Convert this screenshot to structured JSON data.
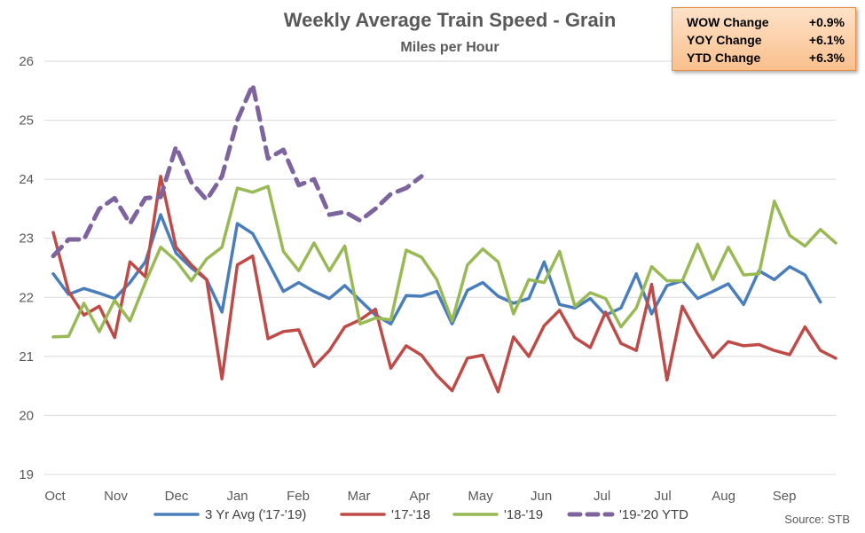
{
  "stats": [
    {
      "label": "WOW Change",
      "value": "+0.9%"
    },
    {
      "label": "YOY Change",
      "value": "+6.1%"
    },
    {
      "label": "YTD Change",
      "value": "+6.3%"
    }
  ],
  "source": "Source:  STB",
  "chart_data": {
    "type": "line",
    "title": "Weekly Average Train Speed - Grain",
    "subtitle": "Miles per Hour",
    "ylim": [
      19,
      26
    ],
    "yticks": [
      19,
      20,
      21,
      22,
      23,
      24,
      25,
      26
    ],
    "month_labels": [
      "Oct",
      "Nov",
      "Dec",
      "Jan",
      "Feb",
      "Mar",
      "Apr",
      "May",
      "Jun",
      "Jul",
      "Jul",
      "Aug",
      "Sep"
    ],
    "grid": "horizontal",
    "legend_position": "bottom",
    "series": [
      {
        "name": "3 Yr Avg ('17-'19)",
        "color": "#4a7ebb",
        "dash": false,
        "values": [
          22.4,
          22.05,
          22.15,
          22.07,
          21.98,
          22.25,
          22.6,
          23.4,
          22.75,
          22.5,
          22.3,
          21.75,
          23.25,
          23.08,
          22.6,
          22.1,
          22.25,
          22.1,
          21.98,
          22.2,
          21.95,
          21.7,
          21.55,
          22.03,
          22.02,
          22.1,
          21.55,
          22.12,
          22.25,
          22.02,
          21.9,
          21.98,
          22.6,
          21.88,
          21.82,
          21.98,
          21.7,
          21.82,
          22.4,
          21.72,
          22.2,
          22.28,
          21.98,
          22.1,
          22.23,
          21.88,
          22.45,
          22.3,
          22.52,
          22.38,
          21.92
        ]
      },
      {
        "name": "'17-'18",
        "color": "#be4b48",
        "dash": false,
        "values": [
          23.1,
          22.1,
          21.7,
          21.85,
          21.32,
          22.6,
          22.35,
          24.05,
          22.85,
          22.55,
          22.3,
          20.62,
          22.55,
          22.7,
          21.3,
          21.42,
          21.45,
          20.83,
          21.1,
          21.5,
          21.62,
          21.8,
          20.8,
          21.18,
          21.02,
          20.68,
          20.42,
          20.97,
          21.02,
          20.4,
          21.33,
          21.0,
          21.52,
          21.78,
          21.32,
          21.15,
          21.75,
          21.22,
          21.1,
          22.22,
          20.6,
          21.85,
          21.38,
          20.98,
          21.25,
          21.18,
          21.2,
          21.1,
          21.03,
          21.5,
          21.1,
          20.97
        ]
      },
      {
        "name": "'18-'19",
        "color": "#98b954",
        "dash": false,
        "values": [
          21.33,
          21.34,
          21.9,
          21.42,
          21.95,
          21.6,
          22.25,
          22.85,
          22.62,
          22.28,
          22.65,
          22.85,
          23.85,
          23.78,
          23.88,
          22.78,
          22.45,
          22.92,
          22.45,
          22.87,
          21.55,
          21.65,
          21.62,
          22.8,
          22.68,
          22.3,
          21.6,
          22.55,
          22.82,
          22.6,
          21.72,
          22.3,
          22.25,
          22.78,
          21.85,
          22.08,
          21.98,
          21.5,
          21.82,
          22.52,
          22.28,
          22.28,
          22.9,
          22.3,
          22.85,
          22.38,
          22.4,
          23.63,
          23.05,
          22.87,
          23.15,
          22.92
        ]
      },
      {
        "name": "'19-'20 YTD",
        "color": "#7e649e",
        "dash": true,
        "values": [
          22.7,
          22.98,
          22.98,
          23.5,
          23.68,
          23.25,
          23.68,
          23.7,
          24.55,
          23.95,
          23.65,
          24.05,
          25.0,
          25.6,
          24.35,
          24.5,
          23.9,
          24.0,
          23.4,
          23.45,
          23.3,
          23.5,
          23.75,
          23.85,
          24.05
        ]
      }
    ]
  }
}
